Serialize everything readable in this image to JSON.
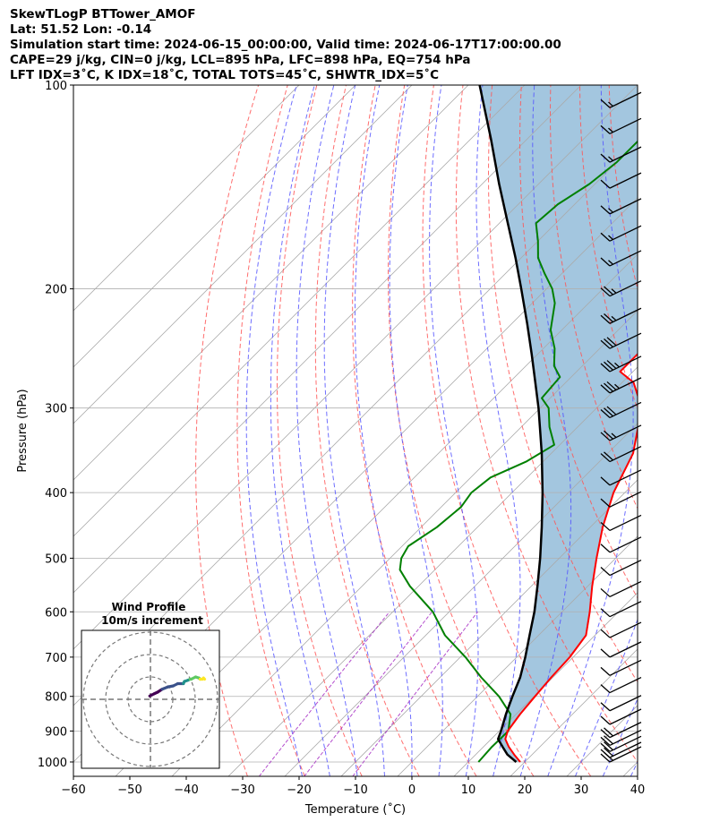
{
  "header": {
    "line1": "SkewTLogP BTTower_AMOF",
    "line2": "Lat: 51.52   Lon: -0.14",
    "line3": "Simulation start time: 2024-06-15_00:00:00, Valid time: 2024-06-17T17:00:00.00",
    "line4": "CAPE=29 j/kg, CIN=0 j/kg, LCL=895 hPa, LFC=898 hPa, EQ=754 hPa",
    "line5": "LFT IDX=3˚C, K IDX=18˚C, TOTAL TOTS=45˚C, SHWTR_IDX=5˚C"
  },
  "chart_data": {
    "type": "line",
    "subtype": "skew-T log-P",
    "xlabel": "Temperature (˚C)",
    "ylabel": "Pressure (hPa)",
    "xlim": [
      -60,
      40
    ],
    "ylim": [
      1050,
      100
    ],
    "x_ticks": [
      -60,
      -50,
      -40,
      -30,
      -20,
      -10,
      0,
      10,
      20,
      30,
      40
    ],
    "x_tick_labels": [
      "−60",
      "−50",
      "−40",
      "−30",
      "−20",
      "−10",
      "0",
      "10",
      "20",
      "30",
      "40"
    ],
    "y_ticks": [
      100,
      200,
      300,
      400,
      500,
      600,
      700,
      800,
      900,
      1000
    ],
    "y_tick_labels": [
      "100",
      "200",
      "300",
      "400",
      "500",
      "600",
      "700",
      "800",
      "900",
      "1000"
    ],
    "y_scale": "log",
    "grid": true,
    "colors": {
      "temperature": "#ff0000",
      "dewpoint": "#008000",
      "parcel": "#000000",
      "cape_fill": "#a3c6df",
      "dry_adiabat": "#ff5555",
      "moist_adiabat": "#5555ff",
      "mixing_ratio": "#a020c0",
      "isotherm": "#aaaaaa"
    },
    "series": [
      {
        "key": "temperature",
        "pressure": [
          1000,
          975,
          950,
          925,
          900,
          850,
          800,
          750,
          700,
          650,
          600,
          550,
          500,
          450,
          400,
          350,
          300,
          275,
          265,
          250,
          240,
          230,
          220,
          210,
          200,
          190,
          180,
          170,
          160,
          150,
          140,
          130,
          120,
          110,
          100
        ],
        "values": [
          19.2,
          16.8,
          14.5,
          12.5,
          11.5,
          10.7,
          10.2,
          9.7,
          9.4,
          8.4,
          4.9,
          0.8,
          -3.4,
          -7.8,
          -12,
          -15.5,
          -22,
          -28,
          -32.3,
          -32.3,
          -32.3,
          -31.7,
          -32.1,
          -33,
          -35,
          -36.5,
          -38.5,
          -41.8,
          -44.8,
          -46.7,
          -49.3,
          -50.9,
          -53.3,
          -56,
          -58.5
        ]
      },
      {
        "key": "dewpoint",
        "pressure": [
          1000,
          950,
          900,
          850,
          800,
          750,
          700,
          650,
          600,
          550,
          520,
          500,
          480,
          450,
          420,
          400,
          380,
          360,
          340,
          320,
          300,
          290,
          270,
          260,
          245,
          230,
          210,
          200,
          190,
          180,
          170,
          160,
          150,
          140,
          130,
          120,
          110,
          100
        ],
        "values": [
          11.8,
          11.5,
          11.6,
          9,
          3.8,
          -2.7,
          -9.1,
          -16.6,
          -22.9,
          -31.5,
          -36.2,
          -38,
          -38.9,
          -37.2,
          -36.5,
          -37.2,
          -36.5,
          -33,
          -31,
          -35,
          -38.5,
          -41.5,
          -42,
          -45,
          -48,
          -52,
          -56,
          -59,
          -63,
          -67,
          -70,
          -73.5,
          -73,
          -71,
          -70,
          -70,
          -71,
          -72
        ]
      },
      {
        "key": "parcel",
        "pressure": [
          1000,
          975,
          950,
          925,
          900,
          850,
          800,
          750,
          700,
          650,
          600,
          550,
          500,
          450,
          400,
          350,
          300,
          275,
          250,
          225,
          200,
          180,
          160,
          140,
          120,
          100
        ],
        "values": [
          18.5,
          15.6,
          13.4,
          11.2,
          10.3,
          8.2,
          6.2,
          4.2,
          1.5,
          -1.6,
          -4.9,
          -8.9,
          -13.4,
          -18.6,
          -24.6,
          -31.7,
          -40.3,
          -45.4,
          -51,
          -57.3,
          -64.5,
          -71,
          -78.5,
          -87,
          -96.5,
          -108
        ]
      }
    ],
    "cape_area": "between temperature and parcel profile where parcel is cooler",
    "wind_barbs": {
      "pressure": [
        1000,
        985,
        965,
        945,
        920,
        880,
        840,
        790,
        745,
        700,
        655,
        610,
        570,
        530,
        490,
        455,
        420,
        390,
        360,
        335,
        310,
        285,
        265,
        245,
        225,
        205,
        185,
        170,
        155,
        142,
        130,
        118,
        108
      ],
      "barb_count": [
        2,
        2,
        2,
        2,
        2,
        1,
        1,
        1,
        1,
        1,
        1,
        1,
        1,
        1,
        1,
        1,
        1,
        1,
        2,
        2.5,
        3,
        3.5,
        3.5,
        3,
        2.5,
        2.5,
        1.5,
        1.5,
        1.5,
        1,
        1.5,
        1.5,
        1.5
      ]
    },
    "hodograph": {
      "title": "Wind Profile",
      "subtitle": "10m/s increment",
      "rings": 3,
      "points_u": [
        -7.5,
        -6.5,
        -5.5,
        -4,
        -2,
        0.5,
        3,
        5,
        7.5,
        8,
        9.5,
        10.5,
        11,
        13,
        14.5,
        15,
        16,
        16.5,
        17
      ],
      "points_v": [
        1.5,
        2,
        2.5,
        3.2,
        4.5,
        5.5,
        6,
        7,
        7,
        8,
        8.5,
        9,
        9,
        10,
        9.5,
        9,
        9,
        9.5,
        9
      ],
      "colormap": [
        "#440154",
        "#3b528b",
        "#21918c",
        "#5ec962",
        "#fde725"
      ]
    }
  }
}
